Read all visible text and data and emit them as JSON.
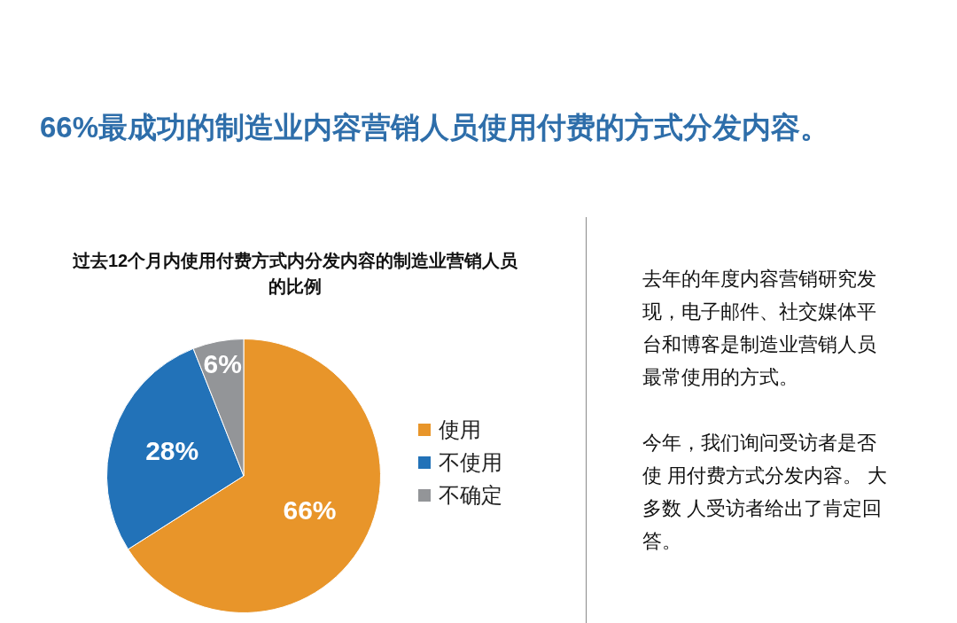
{
  "chart_data": {
    "type": "pie",
    "title": "66%最成功的制造业内容营销人员使用付费的方式分发内容。",
    "subtitle": "过去12个月内使用付费方式内分发内容的制造业营销人员的比例",
    "categories": [
      "使用",
      "不使用",
      "不确定"
    ],
    "values": [
      66,
      28,
      6
    ],
    "colors": [
      "#e8952a",
      "#2272b8",
      "#939598"
    ],
    "value_labels": [
      "66%",
      "28%",
      "6%"
    ],
    "legend": "right",
    "annotations": [
      "去年的年度内容营销研究发现，电子邮件、社交媒体平台和博客是制造业营销人员最常使用的方式。",
      "今年，我们询问受访者是否使 用付费方式分发内容。 大多数 人受访者给出了肯定回答。"
    ]
  }
}
